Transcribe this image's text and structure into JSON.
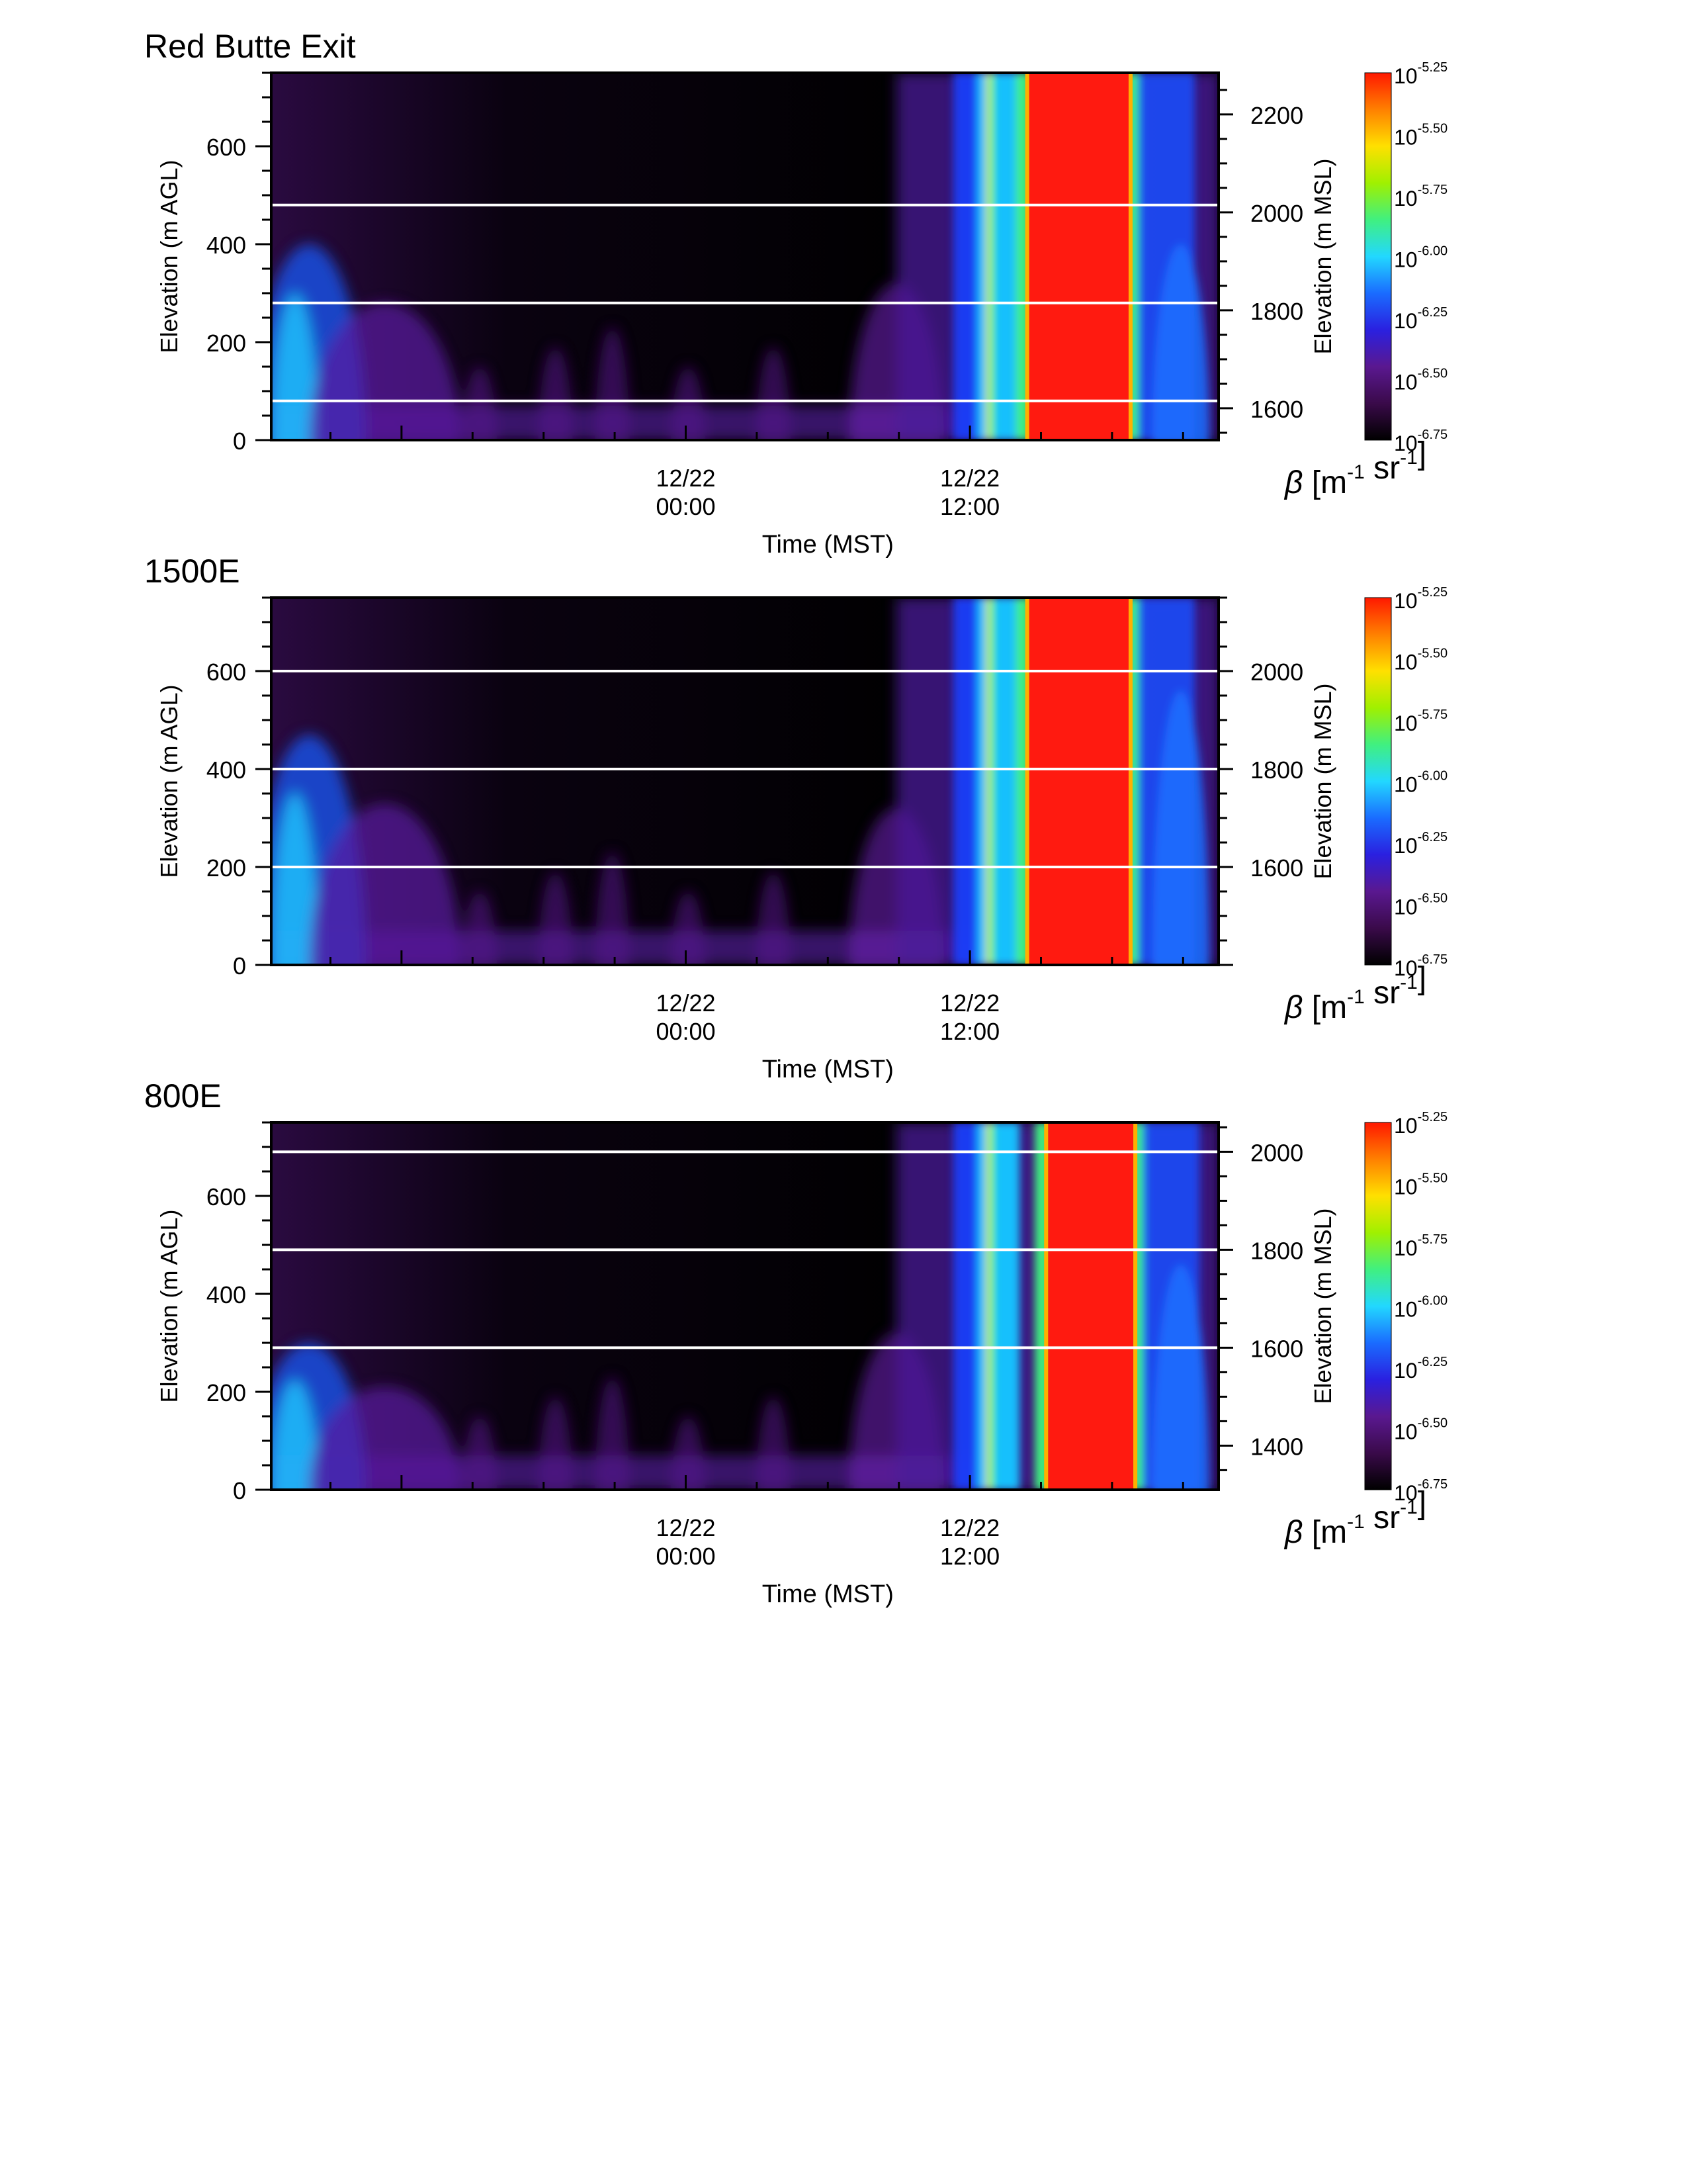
{
  "colorbar_colors": [
    "#000000",
    "#3a0a4a",
    "#5a1890",
    "#2a20e0",
    "#1a6cff",
    "#22d8ff",
    "#40f080",
    "#a0f000",
    "#ffe000",
    "#ff8000",
    "#ff1800"
  ],
  "colors": {
    "background_low": "#000000",
    "saturated": "#ff1a10",
    "layer_line": "#ffffff",
    "axis": "#000000"
  },
  "chart_data": [
    {
      "type": "heatmap",
      "title": "Red Butte Exit",
      "xlabel": "Time (MST)",
      "ylabel": "Elevation (m AGL)",
      "ylabel_right": "Elevation (m MSL)",
      "x_tick_labels": [
        {
          "date": "12/22",
          "time": "00:00"
        },
        {
          "date": "12/22",
          "time": "12:00"
        }
      ],
      "y_ticks_left": [
        "0",
        "200",
        "400",
        "600"
      ],
      "y_ticks_right": [
        "1600",
        "1800",
        "2000",
        "2200"
      ],
      "ylim": [
        0,
        750
      ],
      "msl_at_agl0": 1535,
      "layer_heights_agl": [
        80,
        280,
        480
      ],
      "colorbar": {
        "label": "β [m⁻¹ sr⁻¹]",
        "scale": "log10",
        "range": [
          -6.75,
          -5.25
        ],
        "tick_labels": [
          "10^-5.25",
          "10^-5.50",
          "10^-5.75",
          "10^-6.00",
          "10^-6.25",
          "10^-6.50",
          "10^-6.75"
        ]
      },
      "features": {
        "saturated_block_x": [
          0.8,
          0.905
        ],
        "early_plume_top_agl": 400,
        "late_plume_top_agl": 400
      }
    },
    {
      "type": "heatmap",
      "title": "1500E",
      "xlabel": "Time (MST)",
      "ylabel": "Elevation (m AGL)",
      "ylabel_right": "Elevation (m MSL)",
      "x_tick_labels": [
        {
          "date": "12/22",
          "time": "00:00"
        },
        {
          "date": "12/22",
          "time": "12:00"
        }
      ],
      "y_ticks_left": [
        "0",
        "200",
        "400",
        "600"
      ],
      "y_ticks_right": [
        "1600",
        "1800",
        "2000"
      ],
      "ylim": [
        0,
        750
      ],
      "msl_at_agl0": 1400,
      "layer_heights_agl": [
        200,
        400,
        600
      ],
      "colorbar": {
        "label": "β [m⁻¹ sr⁻¹]",
        "scale": "log10",
        "range": [
          -6.75,
          -5.25
        ],
        "tick_labels": [
          "10^-5.25",
          "10^-5.50",
          "10^-5.75",
          "10^-6.00",
          "10^-6.25",
          "10^-6.50",
          "10^-6.75"
        ]
      },
      "features": {
        "saturated_block_x": [
          0.8,
          0.905
        ],
        "early_plume_top_agl": 470,
        "late_plume_top_agl": 560
      }
    },
    {
      "type": "heatmap",
      "title": "800E",
      "xlabel": "Time (MST)",
      "ylabel": "Elevation (m AGL)",
      "ylabel_right": "Elevation (m MSL)",
      "x_tick_labels": [
        {
          "date": "12/22",
          "time": "00:00"
        },
        {
          "date": "12/22",
          "time": "12:00"
        }
      ],
      "y_ticks_left": [
        "0",
        "200",
        "400",
        "600"
      ],
      "y_ticks_right": [
        "1400",
        "1600",
        "1800",
        "2000"
      ],
      "ylim": [
        0,
        750
      ],
      "msl_at_agl0": 1310,
      "layer_heights_agl": [
        290,
        490,
        690
      ],
      "colorbar": {
        "label": "β [m⁻¹ sr⁻¹]",
        "scale": "log10",
        "range": [
          -6.75,
          -5.25
        ],
        "tick_labels": [
          "10^-5.25",
          "10^-5.50",
          "10^-5.75",
          "10^-6.00",
          "10^-6.25",
          "10^-6.50",
          "10^-6.75"
        ]
      },
      "features": {
        "saturated_block_x": [
          0.82,
          0.91
        ],
        "early_plume_top_agl": 300,
        "late_plume_top_agl": 460
      }
    }
  ]
}
